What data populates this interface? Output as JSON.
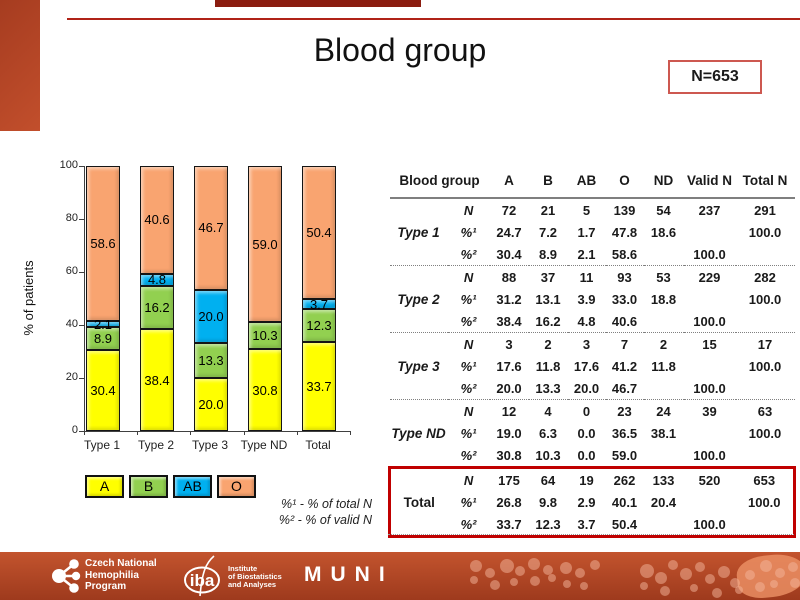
{
  "title": "Blood group",
  "n_box": "N=653",
  "chart_data": {
    "type": "bar",
    "stacked": true,
    "ylabel": "% of patients",
    "ylim": [
      0,
      100
    ],
    "yticks": [
      0,
      20,
      40,
      60,
      80,
      100
    ],
    "grid": false,
    "legend_position": "bottom",
    "categories": [
      "Type 1",
      "Type 2",
      "Type 3",
      "Type ND",
      "Total"
    ],
    "series": [
      {
        "name": "A",
        "color": "#ffff00",
        "values": [
          30.4,
          38.4,
          20.0,
          30.8,
          33.7
        ]
      },
      {
        "name": "B",
        "color": "#92d050",
        "values": [
          8.9,
          16.2,
          13.3,
          10.3,
          12.3
        ]
      },
      {
        "name": "AB",
        "color": "#00b0f0",
        "values": [
          2.1,
          4.8,
          20.0,
          0.0,
          3.7
        ]
      },
      {
        "name": "O",
        "color": "#f9a470",
        "values": [
          58.6,
          40.6,
          46.7,
          59.0,
          50.4
        ]
      }
    ]
  },
  "footnotes": [
    "%¹ - % of total N",
    "%² - % of valid N"
  ],
  "table": {
    "corner_header": "Blood group",
    "headers": [
      "A",
      "B",
      "AB",
      "O",
      "ND",
      "Valid N",
      "Total N"
    ],
    "groups": [
      {
        "name": "Type 1",
        "highlight": false,
        "rows": [
          {
            "label": "N",
            "values": [
              "72",
              "21",
              "5",
              "139",
              "54",
              "237",
              "291"
            ]
          },
          {
            "label": "%¹",
            "values": [
              "24.7",
              "7.2",
              "1.7",
              "47.8",
              "18.6",
              "",
              "100.0"
            ]
          },
          {
            "label": "%²",
            "values": [
              "30.4",
              "8.9",
              "2.1",
              "58.6",
              "",
              "100.0",
              ""
            ]
          }
        ]
      },
      {
        "name": "Type 2",
        "highlight": false,
        "rows": [
          {
            "label": "N",
            "values": [
              "88",
              "37",
              "11",
              "93",
              "53",
              "229",
              "282"
            ]
          },
          {
            "label": "%¹",
            "values": [
              "31.2",
              "13.1",
              "3.9",
              "33.0",
              "18.8",
              "",
              "100.0"
            ]
          },
          {
            "label": "%²",
            "values": [
              "38.4",
              "16.2",
              "4.8",
              "40.6",
              "",
              "100.0",
              ""
            ]
          }
        ]
      },
      {
        "name": "Type 3",
        "highlight": false,
        "rows": [
          {
            "label": "N",
            "values": [
              "3",
              "2",
              "3",
              "7",
              "2",
              "15",
              "17"
            ]
          },
          {
            "label": "%¹",
            "values": [
              "17.6",
              "11.8",
              "17.6",
              "41.2",
              "11.8",
              "",
              "100.0"
            ]
          },
          {
            "label": "%²",
            "values": [
              "20.0",
              "13.3",
              "20.0",
              "46.7",
              "",
              "100.0",
              ""
            ]
          }
        ]
      },
      {
        "name": "Type ND",
        "highlight": false,
        "rows": [
          {
            "label": "N",
            "values": [
              "12",
              "4",
              "0",
              "23",
              "24",
              "39",
              "63"
            ]
          },
          {
            "label": "%¹",
            "values": [
              "19.0",
              "6.3",
              "0.0",
              "36.5",
              "38.1",
              "",
              "100.0"
            ]
          },
          {
            "label": "%²",
            "values": [
              "30.8",
              "10.3",
              "0.0",
              "59.0",
              "",
              "100.0",
              ""
            ]
          }
        ]
      },
      {
        "name": "Total",
        "highlight": true,
        "rows": [
          {
            "label": "N",
            "values": [
              "175",
              "64",
              "19",
              "262",
              "133",
              "520",
              "653"
            ]
          },
          {
            "label": "%¹",
            "values": [
              "26.8",
              "9.8",
              "2.9",
              "40.1",
              "20.4",
              "",
              "100.0"
            ]
          },
          {
            "label": "%²",
            "values": [
              "33.7",
              "12.3",
              "3.7",
              "50.4",
              "",
              "100.0",
              ""
            ]
          }
        ]
      }
    ]
  },
  "footer": {
    "cnhp_lines": [
      "Czech National",
      "Hemophilia",
      "Program"
    ],
    "iba_short": "iba",
    "iba_lines": [
      "Institute",
      "of Biostatistics",
      "and Analyses"
    ],
    "muni": "MUNI"
  },
  "colors": {
    "accent_line": "#b02318",
    "top_box": "#8b1d10",
    "highlight_border": "#c00000",
    "footer_top": "#c3542e",
    "footer_bottom": "#9e3a1d"
  }
}
